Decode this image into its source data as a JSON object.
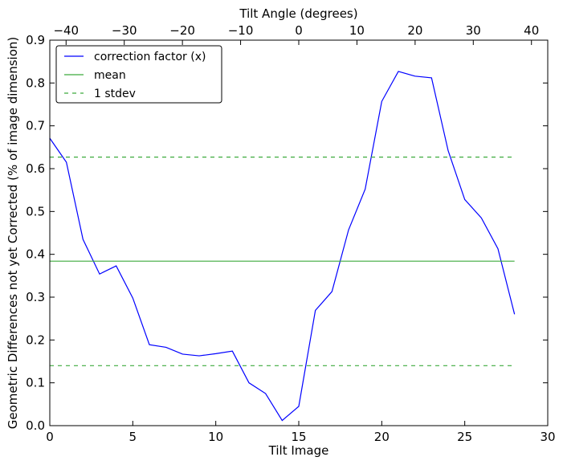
{
  "chart_data": {
    "type": "line",
    "xlabel": "Tilt Image",
    "ylabel": "Geometric Differences not yet Corrected (% of image dimension)",
    "top_xlabel": "Tilt Angle (degrees)",
    "xlim": [
      0,
      30
    ],
    "ylim": [
      0,
      0.9
    ],
    "top_xlim": [
      -42.8,
      42.8
    ],
    "x_ticks": [
      "0",
      "5",
      "10",
      "15",
      "20",
      "25",
      "30"
    ],
    "y_ticks": [
      "0.0",
      "0.1",
      "0.2",
      "0.3",
      "0.4",
      "0.5",
      "0.6",
      "0.7",
      "0.8",
      "0.9"
    ],
    "top_ticks": [
      "−40",
      "−30",
      "−20",
      "−10",
      "0",
      "10",
      "20",
      "30",
      "40"
    ],
    "grid": false,
    "legend_position": "top-left",
    "series": [
      {
        "name": "correction factor (x)",
        "color": "#0000ff",
        "style": "solid",
        "x": [
          0,
          1,
          2,
          3,
          4,
          5,
          6,
          7,
          8,
          9,
          10,
          11,
          12,
          13,
          14,
          15,
          16,
          17,
          18,
          19,
          20,
          21,
          22,
          23,
          24,
          25,
          26,
          27,
          28
        ],
        "y": [
          0.671,
          0.615,
          0.435,
          0.354,
          0.373,
          0.298,
          0.189,
          0.183,
          0.167,
          0.163,
          0.168,
          0.174,
          0.1,
          0.075,
          0.012,
          0.045,
          0.269,
          0.313,
          0.457,
          0.552,
          0.757,
          0.827,
          0.816,
          0.812,
          0.642,
          0.528,
          0.485,
          0.413,
          0.26
        ]
      },
      {
        "name": "mean",
        "color": "#3caa3c",
        "style": "solid",
        "x": [
          0,
          28
        ],
        "y": [
          0.384,
          0.384
        ]
      },
      {
        "name": "1 stdev",
        "color": "#3caa3c",
        "style": "dashed",
        "x": [
          0,
          28
        ],
        "y": [
          0.627,
          0.627
        ]
      },
      {
        "name": "",
        "color": "#3caa3c",
        "style": "dashed",
        "x": [
          0,
          28
        ],
        "y": [
          0.14,
          0.14
        ]
      }
    ]
  }
}
